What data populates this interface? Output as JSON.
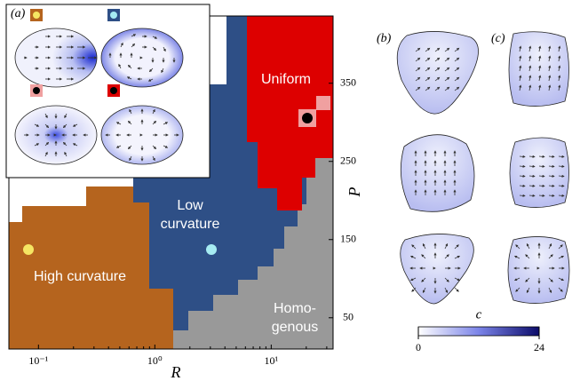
{
  "chart_data": {
    "type": "phase-diagram",
    "xlabel": "R",
    "ylabel": "P",
    "xscale": "log",
    "xlim": [
      0.0557,
      34
    ],
    "ylim": [
      10,
      436
    ],
    "xticks": [
      {
        "value": 0.1,
        "label": "10⁻¹"
      },
      {
        "value": 1,
        "label": "10⁰"
      },
      {
        "value": 10,
        "label": "10¹"
      }
    ],
    "yticks": [
      50,
      150,
      250,
      350
    ],
    "regions": [
      {
        "lines": [
          "Uniform"
        ],
        "color": "#dd0000"
      },
      {
        "lines": [
          "Low",
          "curvature"
        ],
        "color": "#2e4f86"
      },
      {
        "lines": [
          "High curvature"
        ],
        "color": "#b5641e"
      },
      {
        "lines": [
          "Homo-",
          "genous"
        ],
        "color": "#999999"
      }
    ],
    "panels": [
      "(a)",
      "(b)",
      "(c)"
    ],
    "colorbar": {
      "label": "c",
      "lim": [
        0,
        24
      ],
      "ticks": [
        0,
        24
      ]
    }
  }
}
